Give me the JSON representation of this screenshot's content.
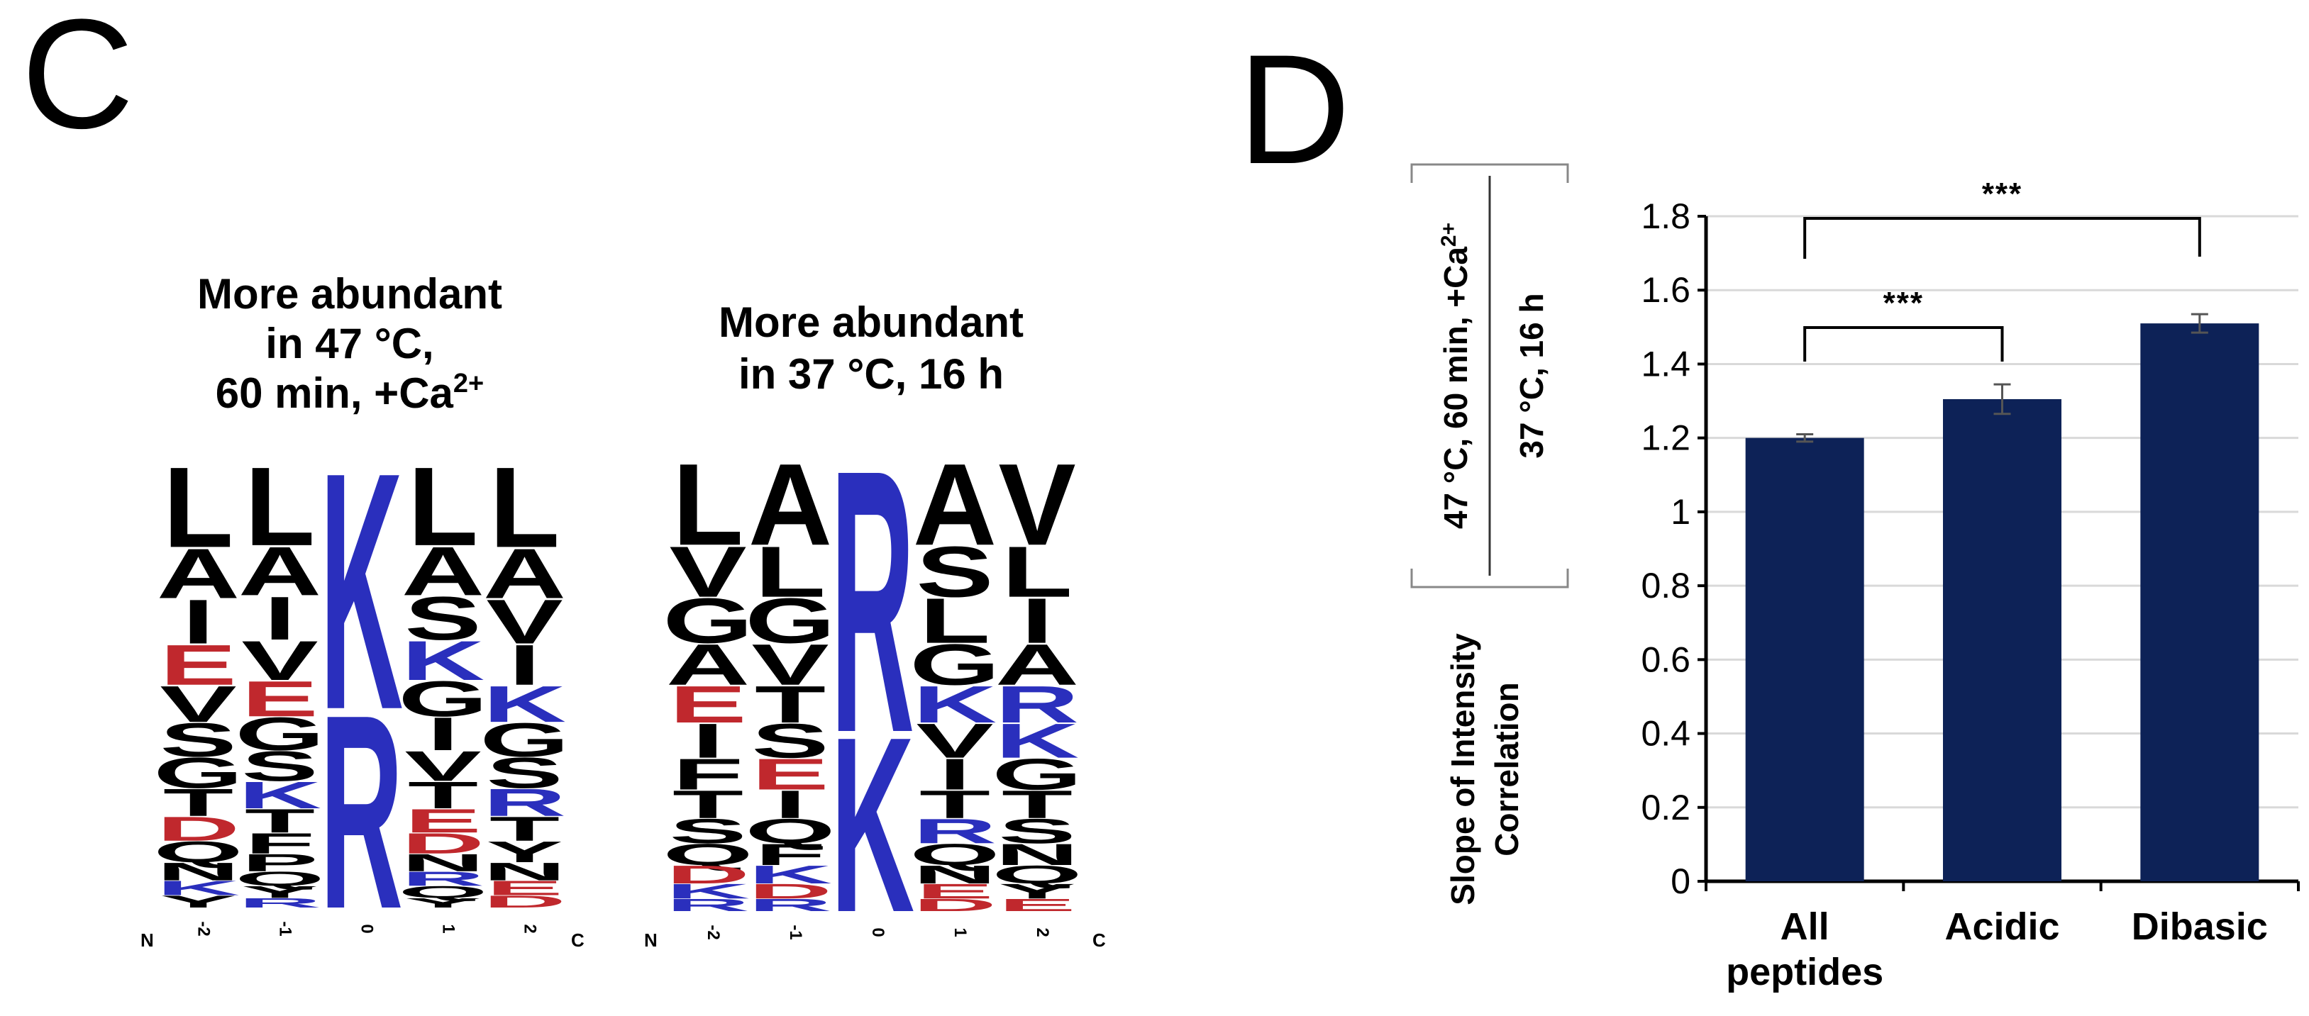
{
  "panels": {
    "c": {
      "label": "C"
    },
    "d": {
      "label": "D"
    }
  },
  "logos": [
    {
      "title_lines": [
        "More abundant",
        "in 47 °C,",
        "60 min, +Ca"
      ],
      "title_superscript": "2+",
      "end_labels": [
        "N",
        "C"
      ],
      "positions": [
        "-2",
        "-1",
        "0",
        "1",
        "2"
      ],
      "columns": [
        [
          "L",
          "A",
          "I",
          "E",
          "V",
          "S",
          "G",
          "T",
          "D",
          "Q",
          "N",
          "K",
          "Y"
        ],
        [
          "L",
          "A",
          "I",
          "V",
          "E",
          "G",
          "S",
          "K",
          "T",
          "F",
          "P",
          "Q",
          "Y",
          "R"
        ],
        [
          "K",
          "R"
        ],
        [
          "L",
          "A",
          "S",
          "K",
          "G",
          "I",
          "V",
          "T",
          "E",
          "D",
          "N",
          "R",
          "Q",
          "Y"
        ],
        [
          "L",
          "A",
          "V",
          "I",
          "K",
          "G",
          "S",
          "R",
          "T",
          "Y",
          "N",
          "E",
          "D"
        ]
      ]
    },
    {
      "title_lines": [
        "More abundant",
        "in 37 °C, 16 h"
      ],
      "title_superscript": "",
      "end_labels": [
        "N",
        "C"
      ],
      "positions": [
        "-2",
        "-1",
        "0",
        "1",
        "2"
      ],
      "columns": [
        [
          "L",
          "V",
          "G",
          "A",
          "E",
          "I",
          "F",
          "T",
          "S",
          "Q",
          "D",
          "K",
          "R"
        ],
        [
          "A",
          "L",
          "G",
          "V",
          "T",
          "S",
          "E",
          "I",
          "Q",
          "F",
          "K",
          "D",
          "R"
        ],
        [
          "R",
          "K"
        ],
        [
          "A",
          "S",
          "L",
          "G",
          "K",
          "V",
          "I",
          "T",
          "R",
          "Q",
          "N",
          "E",
          "D"
        ],
        [
          "V",
          "L",
          "I",
          "A",
          "R",
          "K",
          "G",
          "T",
          "S",
          "N",
          "Q",
          "Y",
          "E"
        ]
      ]
    }
  ],
  "colors": {
    "hydrophobic": "#000000",
    "acidic": "#c0282d",
    "basic": "#2a2fbd",
    "bar": "#0d2257",
    "grid": "#d9d9d9",
    "errorbar": "#555555"
  },
  "y_axis_label": {
    "top_label": "47 °C, 60 min, +Ca",
    "top_superscript": "2+",
    "bottom_label": "37 °C, 16 h",
    "line1": "Slope of Intensity",
    "line2": "Correlation"
  },
  "chart_data": {
    "type": "bar",
    "title": "",
    "categories": [
      [
        "All",
        "peptides"
      ],
      [
        "Acidic"
      ],
      [
        "Dibasic"
      ]
    ],
    "values": [
      1.2,
      1.305,
      1.51
    ],
    "errors": [
      0.01,
      0.04,
      0.025
    ],
    "ylim": [
      0,
      1.8
    ],
    "yticks": [
      "0",
      "0.2",
      "0.4",
      "0.6",
      "0.8",
      "1",
      "1.2",
      "1.4",
      "1.6",
      "1.8"
    ],
    "grid": true,
    "significance": [
      {
        "from": 0,
        "to": 1,
        "label": "***"
      },
      {
        "from": 0,
        "to": 2,
        "label": "***"
      }
    ]
  }
}
